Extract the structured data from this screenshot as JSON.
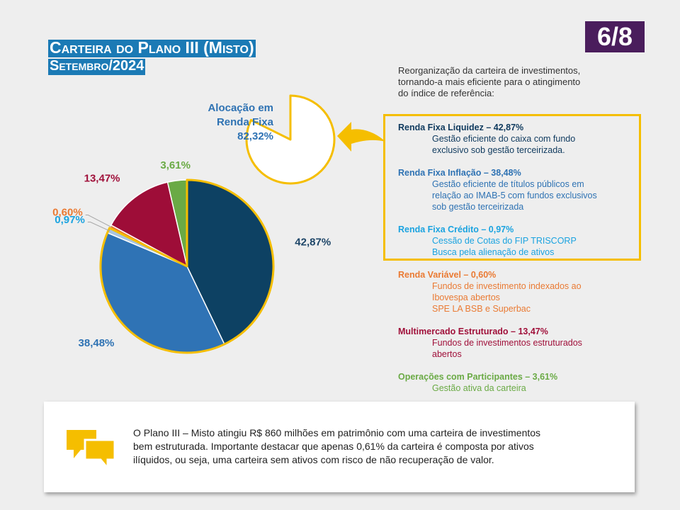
{
  "header": {
    "title_line1": "Carteira do Plano III (Misto)",
    "title_line2": "Setembro/2024",
    "page_badge": "6/8"
  },
  "inset": {
    "label_lines": [
      "Alocação em",
      "Renda Fixa",
      "82,32%"
    ],
    "value": 82.32
  },
  "intro_text": [
    "Reorganização da carteira de investimentos,",
    "tornando-a mais eficiente para o atingimento",
    "do índice de referência:"
  ],
  "categories": [
    {
      "title": "Renda Fixa Liquidez – 42,87%",
      "color": "#0f3a5e",
      "desc": [
        "Gestão eficiente do caixa com fundo",
        "exclusivo sob gestão terceirizada."
      ]
    },
    {
      "title": "Renda Fixa Inflação – 38,48%",
      "color": "#2e72b3",
      "desc": [
        "Gestão eficiente de títulos públicos em",
        "relação ao IMAB-5 com fundos exclusivos",
        "sob gestão terceirizada"
      ]
    },
    {
      "title": "Renda Fixa Crédito – 0,97%",
      "color": "#1aa3e0",
      "desc": [
        "Cessão de Cotas do FIP TRISCORP",
        "Busca pela alienação de ativos"
      ]
    },
    {
      "title": "Renda Variável – 0,60%",
      "color": "#ea7a33",
      "desc": [
        "Fundos de investimento indexados ao",
        "Ibovespa abertos",
        "SPE LA BSB e Superbac"
      ]
    },
    {
      "title": "Multimercado Estruturado – 13,47%",
      "color": "#a0103a",
      "desc": [
        "Fundos de investimentos estruturados",
        "abertos"
      ]
    },
    {
      "title": "Operações com Participantes – 3,61%",
      "color": "#6aaa45",
      "desc": [
        "Gestão ativa da carteira"
      ]
    }
  ],
  "callout_lines": [
    "O Plano III – Misto atingiu R$ 860 milhões em patrimônio com uma carteira de investimentos",
    "bem estruturada. Importante destacar que apenas 0,61% da carteira é composta por ativos",
    "ilíquidos, ou seja, uma carteira sem ativos com risco de não recuperação de valor."
  ],
  "colors": {
    "highlight": "#f5be00",
    "title_bg": "#1b7ab5",
    "badge_bg": "#4a1d5c",
    "icon": "#f5be00"
  },
  "icons": [
    "arrow-icon",
    "chat-bubbles-icon"
  ],
  "chart_data": {
    "type": "pie",
    "slices": [
      {
        "label": "42,87%",
        "value": 42.87,
        "color": "#0d4163"
      },
      {
        "label": "38,48%",
        "value": 38.48,
        "color": "#2f73b5"
      },
      {
        "label": "0,97%",
        "value": 0.97,
        "color": "#a9c5e0"
      },
      {
        "label": "0,60%",
        "value": 0.6,
        "color": "#ea7a33"
      },
      {
        "label": "13,47%",
        "value": 13.47,
        "color": "#9e0d38"
      },
      {
        "label": "3,61%",
        "value": 3.61,
        "color": "#6aaa45"
      }
    ],
    "label_colors": [
      "#1e4668",
      "#2e72b3",
      "#1aa3e0",
      "#ea7a33",
      "#a0103a",
      "#6aaa45"
    ],
    "highlighted": [
      0,
      1,
      2
    ],
    "start": "12 o'clock",
    "direction": "clockwise"
  }
}
